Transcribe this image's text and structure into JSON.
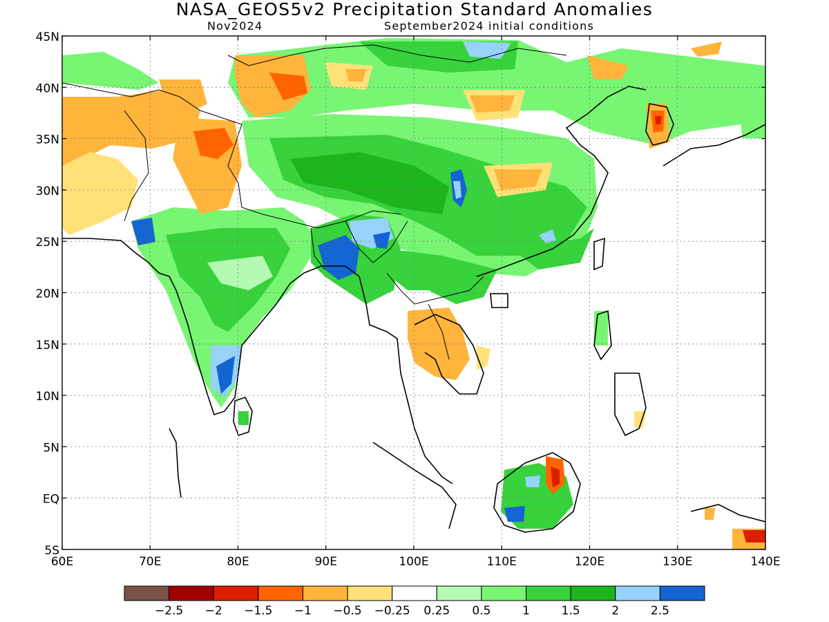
{
  "title": "NASA_GEOS5v2 Precipitation Standard Anomalies",
  "subtitle_left": "Nov2024",
  "subtitle_right": "September2024 initial conditions",
  "lat_labels": [
    "45N",
    "40N",
    "35N",
    "30N",
    "25N",
    "20N",
    "15N",
    "10N",
    "5N",
    "EQ",
    "5S"
  ],
  "lon_labels": [
    "60E",
    "70E",
    "80E",
    "90E",
    "100E",
    "110E",
    "120E",
    "130E",
    "140E"
  ],
  "colorbar": {
    "colors": [
      "#7a5248",
      "#a50000",
      "#dc1e00",
      "#ff6400",
      "#ffb43c",
      "#ffe178",
      "#ffffff",
      "#b4fab4",
      "#78f573",
      "#37d23c",
      "#1eb41e",
      "#96d2fa",
      "#1464d2"
    ],
    "labels": [
      "−2.5",
      "−2",
      "−1.5",
      "−1",
      "−0.5",
      "−0.25",
      "0.25",
      "0.5",
      "1",
      "1.5",
      "2",
      "2.5"
    ]
  }
}
